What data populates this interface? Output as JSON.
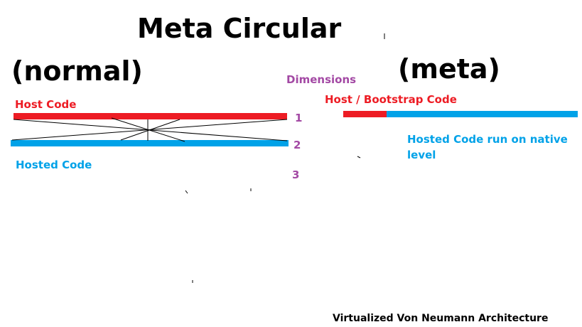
{
  "title": "Meta Circular",
  "normal": {
    "heading": "(normal)",
    "host_label": "Host Code",
    "hosted_label": "Hosted Code"
  },
  "dimensions": {
    "label": "Dimensions",
    "numbers": [
      "1",
      "2",
      "3"
    ]
  },
  "meta": {
    "heading": "(meta)",
    "host_label": "Host / Bootstrap Code",
    "hosted_label_line1": "Hosted Code run on native",
    "hosted_label_line2": "level"
  },
  "footer": "Virtualized Von Neumann Architecture",
  "colors": {
    "host": "#ed1c24",
    "hosted": "#00a2e8",
    "dimension": "#a349a4"
  }
}
